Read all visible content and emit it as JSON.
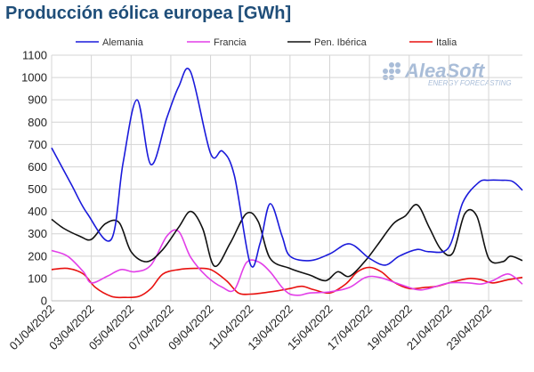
{
  "chart_data": {
    "type": "line",
    "title": "Producción eólica europea [GWh]",
    "xlabel": "",
    "ylabel": "",
    "ylim": [
      0,
      1100
    ],
    "yticks": [
      0,
      100,
      200,
      300,
      400,
      500,
      600,
      700,
      800,
      900,
      1000,
      1100
    ],
    "xlim": [
      0,
      23.7
    ],
    "xtick_labels": [
      "01/04/2022",
      "03/04/2022",
      "05/04/2022",
      "07/04/2022",
      "09/04/2022",
      "11/04/2022",
      "13/04/2022",
      "15/04/2022",
      "17/04/2022",
      "19/04/2022",
      "21/04/2022",
      "23/04/2022"
    ],
    "xtick_positions": [
      0,
      2,
      4,
      6,
      8,
      10,
      12,
      14,
      16,
      18,
      20,
      22
    ],
    "grid": true,
    "legend_position": "top",
    "series": [
      {
        "name": "Alemania",
        "color": "#1a1adb",
        "x": [
          0,
          1,
          1.8,
          3,
          3.6,
          4.3,
          5,
          5.8,
          6.4,
          7,
          8,
          8.6,
          9.2,
          10,
          10.5,
          11,
          11.6,
          12,
          13,
          14,
          15,
          16,
          16.8,
          17.5,
          18.4,
          19,
          20,
          20.7,
          21.5,
          22,
          22.6,
          23.2,
          23.7
        ],
        "y": [
          685,
          520,
          390,
          275,
          620,
          900,
          610,
          820,
          960,
          1025,
          660,
          670,
          560,
          165,
          260,
          435,
          290,
          200,
          180,
          210,
          255,
          190,
          160,
          200,
          230,
          220,
          240,
          440,
          530,
          540,
          540,
          535,
          495
        ]
      },
      {
        "name": "Francia",
        "color": "#e23fe8",
        "x": [
          0,
          0.8,
          1.6,
          2,
          2.8,
          3.5,
          4.2,
          5,
          5.8,
          6.4,
          7,
          7.8,
          8.6,
          9.2,
          9.8,
          10.4,
          11,
          11.6,
          12,
          12.5,
          13,
          14,
          15,
          15.8,
          16.5,
          17.5,
          18.4,
          19,
          20,
          21,
          21.6,
          22.2,
          23,
          23.7
        ],
        "y": [
          225,
          200,
          130,
          80,
          110,
          140,
          130,
          160,
          290,
          310,
          195,
          110,
          60,
          50,
          170,
          175,
          130,
          60,
          30,
          25,
          35,
          40,
          60,
          105,
          105,
          75,
          50,
          55,
          80,
          80,
          75,
          90,
          120,
          75
        ]
      },
      {
        "name": "Pen. Ibérica",
        "color": "#111111",
        "x": [
          0,
          0.6,
          1.4,
          2,
          2.7,
          3.4,
          4,
          4.8,
          5.6,
          6.4,
          7,
          7.6,
          8.2,
          9,
          9.8,
          10.4,
          11,
          12,
          13,
          13.8,
          14.4,
          15,
          15.8,
          16.4,
          17.2,
          17.8,
          18.4,
          19,
          19.6,
          20.2,
          20.8,
          21.4,
          22,
          22.7,
          23.1,
          23.7
        ],
        "y": [
          365,
          325,
          290,
          275,
          345,
          350,
          220,
          175,
          230,
          330,
          400,
          325,
          155,
          260,
          390,
          355,
          190,
          145,
          115,
          90,
          130,
          110,
          180,
          250,
          345,
          380,
          430,
          330,
          230,
          215,
          390,
          380,
          190,
          175,
          200,
          180
        ]
      },
      {
        "name": "Italia",
        "color": "#e8110f",
        "x": [
          0,
          0.8,
          1.6,
          2.2,
          3,
          3.6,
          4.4,
          5,
          5.6,
          6.4,
          7.2,
          8,
          8.8,
          9.4,
          10,
          10.6,
          11.4,
          12,
          12.6,
          13.2,
          14,
          14.8,
          15.4,
          16,
          16.6,
          17.2,
          18,
          18.8,
          19.4,
          20.2,
          21,
          21.6,
          22.2,
          23,
          23.7
        ],
        "y": [
          140,
          145,
          120,
          60,
          20,
          15,
          20,
          55,
          120,
          140,
          145,
          140,
          90,
          35,
          30,
          35,
          45,
          55,
          65,
          50,
          35,
          75,
          130,
          150,
          130,
          85,
          55,
          60,
          65,
          85,
          100,
          95,
          80,
          95,
          105
        ]
      }
    ]
  }
}
